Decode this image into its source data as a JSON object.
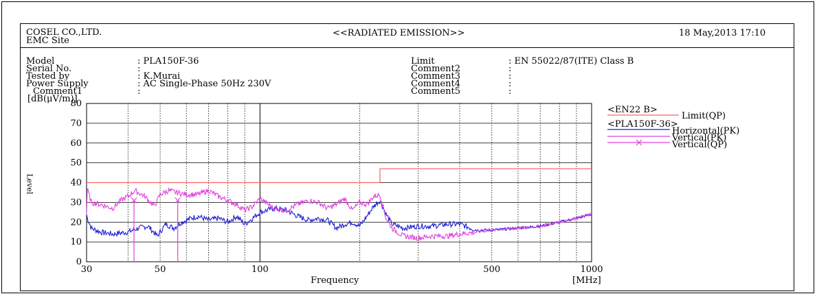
{
  "header": {
    "company": "COSEL CO.,LTD.",
    "site": "EMC Site",
    "title": "<<RADIATED EMISSION>>",
    "datetime": "18 May,2013 17:10"
  },
  "info_left": [
    {
      "label": "Model",
      "value": ": PLA150F-36"
    },
    {
      "label": "Serial No.",
      "value": ":"
    },
    {
      "label": "Tested by",
      "value": ": K.Murai"
    },
    {
      "label": "Power Supply",
      "value": ": AC Single-Phase 50Hz 230V"
    },
    {
      "label": "Comment1",
      "value": ":"
    }
  ],
  "info_right": [
    {
      "label": "Limit",
      "value": ": EN 55022/87(ITE) Class B"
    },
    {
      "label": "Comment2",
      "value": ":"
    },
    {
      "label": "Comment3",
      "value": ":"
    },
    {
      "label": "Comment4",
      "value": ":"
    },
    {
      "label": "Comment5",
      "value": ":"
    }
  ],
  "legend": {
    "group1": "<EN22 B>",
    "group2": "<PLA150F-36>"
  },
  "colors": {
    "limit": "#ff6060",
    "horizontal_pk": "#1a1ad6",
    "vertical_pk": "#e040e0",
    "vertical_qp": "#e040e0"
  },
  "chart_data": {
    "type": "line",
    "xlabel": "Frequency",
    "x_unit": "[MHz]",
    "ylabel": "Level",
    "y_unit": "[dB(μV/m)]",
    "x_scale": "log",
    "xlim": [
      30,
      1000
    ],
    "ylim": [
      0,
      80
    ],
    "x_ticks": [
      30,
      50,
      100,
      500,
      1000
    ],
    "x_ticklabels": [
      "30",
      "50",
      "100",
      "500",
      "1000"
    ],
    "y_ticks": [
      0,
      10,
      20,
      30,
      40,
      50,
      60,
      70,
      80
    ],
    "y_ticklabels": [
      "0",
      "10",
      "20",
      "30",
      "40",
      "50",
      "60",
      "70",
      "80"
    ],
    "grid": true,
    "legend_position": "right",
    "series": [
      {
        "name": "Limit(QP)",
        "style": "step",
        "x": [
          30,
          230,
          230,
          1000
        ],
        "y": [
          40,
          40,
          47,
          47
        ]
      },
      {
        "name": "Horizontal(PK)",
        "x": [
          30,
          31,
          33,
          36,
          40,
          43,
          46,
          49,
          52,
          55,
          58,
          62,
          65,
          70,
          75,
          80,
          85,
          90,
          95,
          100,
          110,
          120,
          130,
          140,
          150,
          160,
          170,
          180,
          190,
          200,
          210,
          220,
          230,
          240,
          250,
          270,
          300,
          330,
          370,
          400,
          450,
          500,
          600,
          700,
          800,
          900,
          1000
        ],
        "y": [
          23,
          17,
          15,
          14,
          15,
          17,
          18,
          13,
          19,
          17,
          20,
          22,
          23,
          21,
          22,
          20,
          23,
          19,
          22,
          25,
          27,
          26,
          23,
          21,
          22,
          21,
          17,
          19,
          20,
          18,
          23,
          28,
          31,
          24,
          19,
          17,
          18,
          18,
          19,
          19,
          16,
          16,
          17,
          18,
          20,
          22,
          24
        ]
      },
      {
        "name": "Vertical(PK)",
        "x": [
          30,
          31,
          33,
          36,
          38,
          40,
          42,
          45,
          48,
          50,
          53,
          56,
          60,
          65,
          70,
          75,
          80,
          85,
          90,
          95,
          100,
          110,
          120,
          130,
          140,
          150,
          160,
          170,
          180,
          190,
          200,
          210,
          220,
          230,
          240,
          250,
          270,
          300,
          330,
          370,
          400,
          450,
          500,
          600,
          700,
          800,
          900,
          1000
        ],
        "y": [
          38,
          30,
          29,
          27,
          31,
          33,
          36,
          33,
          28,
          34,
          36,
          35,
          34,
          34,
          36,
          33,
          31,
          29,
          26,
          28,
          32,
          27,
          26,
          29,
          31,
          30,
          27,
          29,
          32,
          26,
          30,
          29,
          33,
          34,
          22,
          17,
          13,
          12,
          13,
          13,
          14,
          15,
          16,
          17,
          18,
          20,
          22,
          24
        ]
      },
      {
        "name": "Vertical(QP)",
        "style": "marker",
        "x": [
          41.7,
          56.5
        ],
        "y": [
          31,
          31
        ]
      }
    ]
  }
}
